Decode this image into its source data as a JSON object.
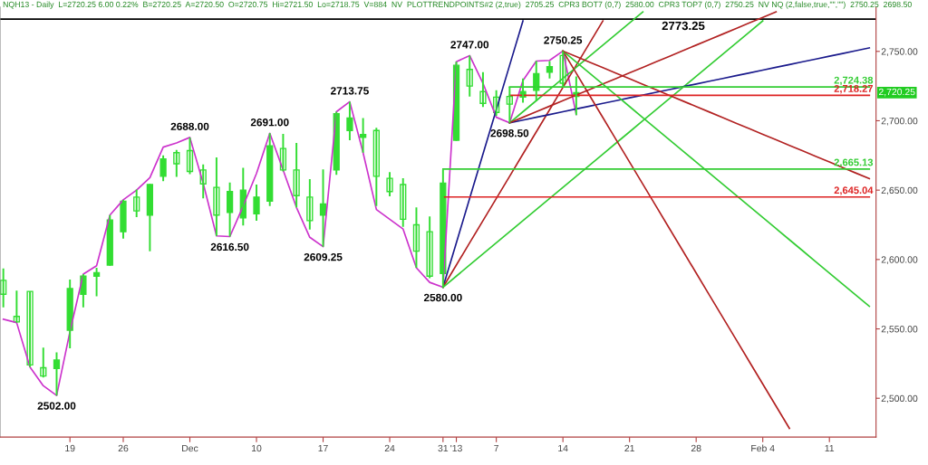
{
  "chart_data": {
    "type": "candlestick",
    "title": "NQH13 - Daily  L=2720.25 6.00 0.22%  B=2720.25  A=2720.50  O=2720.75  Hi=2721.50  Lo=2718.75  V=884  NV  PLOTTRENDPOINTS#2 (2,true)  2705.25  CPR3 BOT7 (0,7)  2580.00  CPR3 TOP7 (0,7)  2750.25  NV NQ (2,false,true,\"\",\"\")  2750.25  2698.50",
    "categories": [
      null,
      null,
      null,
      null,
      null,
      "19",
      null,
      null,
      null,
      "26",
      null,
      null,
      null,
      null,
      "Dec",
      null,
      null,
      null,
      null,
      "10",
      null,
      null,
      null,
      null,
      "17",
      null,
      null,
      null,
      null,
      "24",
      null,
      null,
      null,
      "31",
      "'13",
      null,
      null,
      "7",
      null,
      null,
      null,
      null,
      "14",
      null,
      null,
      null,
      null,
      "21",
      null,
      null,
      null,
      null,
      "28",
      null,
      null,
      null,
      null,
      "Feb 4",
      null,
      null,
      null,
      null,
      "11",
      null,
      null,
      null
    ],
    "color": "#33dd33",
    "ohlc": [
      [
        2585,
        2593.5,
        2565.5,
        2575
      ],
      [
        2559,
        2577.5,
        2554.5,
        2555
      ],
      [
        2577,
        2577,
        2522.5,
        2524
      ],
      [
        2522,
        2536.5,
        2515,
        2516
      ],
      [
        2521.5,
        2533,
        2502,
        2527.5
      ],
      [
        2549,
        2585.5,
        2536,
        2579
      ],
      [
        2575,
        2589.5,
        2565.5,
        2588
      ],
      [
        2588,
        2594,
        2573.5,
        2590.5
      ],
      [
        2596,
        2632,
        2595.5,
        2628.5
      ],
      [
        2620,
        2643,
        2615,
        2642
      ],
      [
        2645,
        2650.5,
        2630.5,
        2635
      ],
      [
        2632,
        2654.5,
        2606,
        2654
      ],
      [
        2660,
        2675,
        2656.5,
        2672.5
      ],
      [
        2677,
        2679,
        2659.5,
        2669
      ],
      [
        2678.5,
        2688,
        2661.5,
        2663.5
      ],
      [
        2664.5,
        2668.5,
        2644,
        2654.5
      ],
      [
        2652,
        2673.5,
        2617,
        2632
      ],
      [
        2634,
        2655.5,
        2616.5,
        2649
      ],
      [
        2630,
        2666,
        2624.5,
        2650
      ],
      [
        2633,
        2654,
        2628,
        2645
      ],
      [
        2642,
        2691,
        2638.5,
        2682
      ],
      [
        2680,
        2690.5,
        2663.5,
        2664.5
      ],
      [
        2664.5,
        2684,
        2637.5,
        2646
      ],
      [
        2645,
        2658,
        2621.5,
        2628
      ],
      [
        2632,
        2665,
        2609.25,
        2640
      ],
      [
        2664.5,
        2706.5,
        2661,
        2705
      ],
      [
        2693,
        2713.75,
        2686,
        2702
      ],
      [
        2688,
        2702,
        2677,
        2690
      ],
      [
        2693,
        2695,
        2638.5,
        2660
      ],
      [
        2658.5,
        2663,
        2645.5,
        2649
      ],
      [
        2654,
        2658.5,
        2623.5,
        2629
      ],
      [
        2625,
        2637.5,
        2594,
        2606
      ],
      [
        2620,
        2631,
        2586.5,
        2588
      ],
      [
        2590,
        2665,
        2580,
        2655
      ],
      [
        2686,
        2742.5,
        2685.5,
        2740
      ],
      [
        2737,
        2747,
        2717.5,
        2725
      ],
      [
        2721,
        2735,
        2710,
        2712.5
      ],
      [
        2717,
        2722,
        2703.5,
        2706
      ],
      [
        2717.5,
        2724.5,
        2698.5,
        2712
      ],
      [
        2717,
        2730.5,
        2713,
        2721
      ],
      [
        2722,
        2743,
        2714,
        2734
      ],
      [
        2735,
        2743,
        2730.5,
        2739
      ],
      [
        2747,
        2750.25,
        2724,
        2727
      ],
      [
        2717.5,
        2732,
        2704,
        2720.25
      ],
      null,
      null,
      null,
      null,
      null,
      null,
      null,
      null,
      null,
      null,
      null,
      null,
      null,
      null,
      null,
      null,
      null,
      null,
      null,
      null,
      null,
      null
    ],
    "series": [
      {
        "type": "line",
        "color": "#cc33cc",
        "values": [
          2557,
          2554.5,
          2522.5,
          2509,
          2502,
          2548,
          2589.5,
          2595.5,
          2632,
          2643,
          2650,
          2659,
          2681,
          2684,
          2688,
          2655,
          2617,
          2616.5,
          2638.5,
          2662,
          2691,
          2664.5,
          2637.5,
          2616,
          2609.25,
          2706.5,
          2713.75,
          2677,
          2636,
          2629,
          2622,
          2594,
          2583.5,
          2580,
          2742.5,
          2747,
          2727,
          2702.5,
          2698.5,
          2729,
          2743,
          2743.5,
          2750.25,
          2704.5,
          null,
          null,
          null,
          null,
          null,
          null,
          null,
          null,
          null,
          null,
          null,
          null,
          null,
          null,
          null,
          null,
          null,
          null,
          null,
          null,
          null,
          null
        ],
        "value_labels": [
          null,
          null,
          null,
          null,
          "2502.00",
          null,
          null,
          null,
          null,
          null,
          null,
          null,
          null,
          null,
          "2688.00",
          null,
          null,
          "2616.50",
          null,
          null,
          "2691.00",
          null,
          null,
          null,
          "2609.25",
          null,
          "2713.75",
          null,
          null,
          null,
          null,
          null,
          null,
          "2580.00",
          null,
          "2747.00",
          null,
          null,
          "2698.50",
          null,
          null,
          null,
          "2750.25",
          null,
          null,
          null,
          null,
          null,
          null,
          null,
          null,
          null,
          null,
          null,
          null,
          null,
          null,
          null,
          null,
          null,
          null,
          null,
          null,
          null,
          null,
          null
        ]
      },
      {
        "type": "line",
        "color": "#1a1a8c",
        "values": [
          null,
          null,
          null,
          null,
          null,
          null,
          null,
          null,
          null,
          null,
          null,
          null,
          null,
          null,
          null,
          null,
          null,
          null,
          null,
          null,
          null,
          null,
          null,
          null,
          null,
          null,
          null,
          null,
          null,
          null,
          null,
          null,
          null,
          2580,
          2612,
          2644,
          2676,
          2708,
          2740,
          2772,
          null,
          null,
          null,
          null,
          null,
          null,
          null,
          null,
          null,
          null,
          null,
          null,
          null,
          null,
          null,
          null,
          null,
          null,
          null,
          null,
          null,
          null,
          null,
          null,
          null,
          null
        ]
      },
      {
        "type": "line",
        "color": "#b22222",
        "values": [
          null,
          null,
          null,
          null,
          null,
          null,
          null,
          null,
          null,
          null,
          null,
          null,
          null,
          null,
          null,
          null,
          null,
          null,
          null,
          null,
          null,
          null,
          null,
          null,
          null,
          null,
          null,
          null,
          null,
          null,
          null,
          null,
          null,
          2580,
          2596,
          2612,
          2628,
          2644,
          2660,
          2676,
          2692,
          2708,
          2724,
          2740,
          2756,
          2772,
          null,
          null,
          null,
          null,
          null,
          null,
          null,
          null,
          null,
          null,
          null,
          null,
          null,
          null,
          null,
          null,
          null,
          null,
          null,
          null
        ]
      },
      {
        "type": "line",
        "color": "#33cc33",
        "values": [
          null,
          null,
          null,
          null,
          null,
          null,
          null,
          null,
          null,
          null,
          null,
          null,
          null,
          null,
          null,
          null,
          null,
          null,
          null,
          null,
          null,
          null,
          null,
          null,
          null,
          null,
          null,
          null,
          null,
          null,
          null,
          null,
          null,
          2580,
          2588,
          2596,
          2604,
          2612,
          2620,
          2628,
          2636,
          2644,
          2652,
          2660,
          2668,
          2676,
          2684,
          2692,
          2700,
          2708,
          2716,
          2724,
          2732,
          2740,
          2748,
          2756,
          2764,
          2772,
          null,
          null,
          null,
          null,
          null,
          null,
          null,
          null
        ]
      },
      {
        "type": "line",
        "color": "#1a1a8c",
        "values": [
          null,
          null,
          null,
          null,
          null,
          null,
          null,
          null,
          null,
          null,
          null,
          null,
          null,
          null,
          null,
          null,
          null,
          null,
          null,
          null,
          null,
          null,
          null,
          null,
          null,
          null,
          null,
          null,
          null,
          null,
          null,
          null,
          null,
          null,
          null,
          null,
          null,
          null,
          2698.5,
          2700.5,
          2702.5,
          2704.5,
          2706.5,
          2708.5,
          2710.5,
          2712.5,
          2714.5,
          2716.5,
          2718.5,
          2720.5,
          2722.5,
          2724.5,
          2726.5,
          2728.5,
          2730.5,
          2732.5,
          2734.5,
          2736.5,
          2738.5,
          2740.5,
          2742.5,
          2744.5,
          2746.5,
          2748.5,
          2750.5,
          2752.5
        ]
      },
      {
        "type": "line",
        "color": "#33cc33",
        "values": [
          null,
          null,
          null,
          null,
          null,
          null,
          null,
          null,
          null,
          null,
          null,
          null,
          null,
          null,
          null,
          null,
          null,
          null,
          null,
          null,
          null,
          null,
          null,
          null,
          null,
          null,
          null,
          null,
          null,
          null,
          null,
          null,
          null,
          null,
          null,
          null,
          null,
          null,
          2698.5,
          2706.5,
          2714.5,
          2722.5,
          2730.5,
          2738.5,
          2746.5,
          2754.5,
          2762.5,
          2770.5,
          2778.5,
          null,
          null,
          null,
          null,
          null,
          null,
          null,
          null,
          null,
          null,
          null,
          null,
          null,
          null,
          null,
          null,
          null
        ]
      },
      {
        "type": "line",
        "color": "#b22222",
        "values": [
          null,
          null,
          null,
          null,
          null,
          null,
          null,
          null,
          null,
          null,
          null,
          null,
          null,
          null,
          null,
          null,
          null,
          null,
          null,
          null,
          null,
          null,
          null,
          null,
          null,
          null,
          null,
          null,
          null,
          null,
          null,
          null,
          null,
          null,
          null,
          null,
          null,
          null,
          2698.5,
          2702.5,
          2706.5,
          2710.5,
          2714.5,
          2718.5,
          2722.5,
          2726.5,
          2730.5,
          2734.5,
          2738.5,
          2742.5,
          2746.5,
          2750.5,
          2754.5,
          2758.5,
          2762.5,
          2766.5,
          2770.5,
          2774.5,
          2778.5,
          null,
          null,
          null,
          null,
          null,
          null,
          null
        ]
      },
      {
        "type": "line",
        "color": "#b22222",
        "values": [
          null,
          null,
          null,
          null,
          null,
          null,
          null,
          null,
          null,
          null,
          null,
          null,
          null,
          null,
          null,
          null,
          null,
          null,
          null,
          null,
          null,
          null,
          null,
          null,
          null,
          null,
          null,
          null,
          null,
          null,
          null,
          null,
          null,
          null,
          null,
          null,
          null,
          null,
          null,
          null,
          null,
          null,
          2750.25,
          2734.25,
          2718.25,
          2702.25,
          2686.25,
          2670.25,
          2654.25,
          2638.25,
          2622.25,
          2606.25,
          2590.25,
          2574.25,
          2558.25,
          2542.25,
          2526.25,
          2510.25,
          2494.25,
          2478.25,
          null,
          null,
          null,
          null,
          null,
          null
        ]
      },
      {
        "type": "line",
        "color": "#33cc33",
        "values": [
          null,
          null,
          null,
          null,
          null,
          null,
          null,
          null,
          null,
          null,
          null,
          null,
          null,
          null,
          null,
          null,
          null,
          null,
          null,
          null,
          null,
          null,
          null,
          null,
          null,
          null,
          null,
          null,
          null,
          null,
          null,
          null,
          null,
          null,
          null,
          null,
          null,
          null,
          null,
          null,
          null,
          null,
          2750.25,
          2742.25,
          2734.25,
          2726.25,
          2718.25,
          2710.25,
          2702.25,
          2694.25,
          2686.25,
          2678.25,
          2670.25,
          2662.25,
          2654.25,
          2646.25,
          2638.25,
          2630.25,
          2622.25,
          2614.25,
          2606.25,
          2598.25,
          2590.25,
          2582.25,
          2574.25,
          2566.25
        ]
      },
      {
        "type": "line",
        "color": "#b22222",
        "values": [
          null,
          null,
          null,
          null,
          null,
          null,
          null,
          null,
          null,
          null,
          null,
          null,
          null,
          null,
          null,
          null,
          null,
          null,
          null,
          null,
          null,
          null,
          null,
          null,
          null,
          null,
          null,
          null,
          null,
          null,
          null,
          null,
          null,
          null,
          null,
          null,
          null,
          null,
          null,
          null,
          null,
          null,
          2750.25,
          2746.25,
          2742.25,
          2738.25,
          2734.25,
          2730.25,
          2726.25,
          2722.25,
          2718.25,
          2714.25,
          2710.25,
          2706.25,
          2702.25,
          2698.25,
          2694.25,
          2690.25,
          2686.25,
          2682.25,
          2678.25,
          2674.25,
          2670.25,
          2666.25,
          2662.25,
          2658.25
        ]
      },
      {
        "type": "line",
        "color": "#33cc33",
        "values": [
          null,
          null,
          null,
          null,
          null,
          null,
          null,
          null,
          null,
          null,
          null,
          null,
          null,
          null,
          null,
          null,
          null,
          null,
          null,
          null,
          null,
          null,
          null,
          null,
          null,
          null,
          null,
          null,
          null,
          null,
          null,
          null,
          null,
          null,
          null,
          null,
          null,
          null,
          2724.38,
          2724.38,
          2724.38,
          2724.38,
          2724.38,
          2724.38,
          2724.38,
          2724.38,
          2724.38,
          2724.38,
          2724.38,
          2724.38,
          2724.38,
          2724.38,
          2724.38,
          2724.38,
          2724.38,
          2724.38,
          2724.38,
          2724.38,
          2724.38,
          2724.38,
          2724.38,
          2724.38,
          2724.38,
          2724.38,
          2724.38,
          2724.38
        ],
        "value_labels": [
          null,
          null,
          null,
          null,
          null,
          null,
          null,
          null,
          null,
          null,
          null,
          null,
          null,
          null,
          null,
          null,
          null,
          null,
          null,
          null,
          null,
          null,
          null,
          null,
          null,
          null,
          null,
          null,
          null,
          null,
          null,
          null,
          null,
          null,
          null,
          null,
          null,
          null,
          null,
          null,
          null,
          null,
          null,
          null,
          null,
          null,
          null,
          null,
          null,
          null,
          null,
          null,
          null,
          null,
          null,
          null,
          null,
          null,
          null,
          null,
          null,
          null,
          null,
          null,
          null,
          "2,724.38"
        ]
      },
      {
        "type": "line",
        "color": "#dd2222",
        "values": [
          null,
          null,
          null,
          null,
          null,
          null,
          null,
          null,
          null,
          null,
          null,
          null,
          null,
          null,
          null,
          null,
          null,
          null,
          null,
          null,
          null,
          null,
          null,
          null,
          null,
          null,
          null,
          null,
          null,
          null,
          null,
          null,
          null,
          null,
          null,
          null,
          null,
          null,
          2718.27,
          2718.27,
          2718.27,
          2718.27,
          2718.27,
          2718.27,
          2718.27,
          2718.27,
          2718.27,
          2718.27,
          2718.27,
          2718.27,
          2718.27,
          2718.27,
          2718.27,
          2718.27,
          2718.27,
          2718.27,
          2718.27,
          2718.27,
          2718.27,
          2718.27,
          2718.27,
          2718.27,
          2718.27,
          2718.27,
          2718.27,
          2718.27
        ],
        "value_labels": [
          null,
          null,
          null,
          null,
          null,
          null,
          null,
          null,
          null,
          null,
          null,
          null,
          null,
          null,
          null,
          null,
          null,
          null,
          null,
          null,
          null,
          null,
          null,
          null,
          null,
          null,
          null,
          null,
          null,
          null,
          null,
          null,
          null,
          null,
          null,
          null,
          null,
          null,
          null,
          null,
          null,
          null,
          null,
          null,
          null,
          null,
          null,
          null,
          null,
          null,
          null,
          null,
          null,
          null,
          null,
          null,
          null,
          null,
          null,
          null,
          null,
          null,
          null,
          null,
          null,
          "2,718.27"
        ]
      },
      {
        "type": "line",
        "color": "#33cc33",
        "values": [
          null,
          null,
          null,
          null,
          null,
          null,
          null,
          null,
          null,
          null,
          null,
          null,
          null,
          null,
          null,
          null,
          null,
          null,
          null,
          null,
          null,
          null,
          null,
          null,
          null,
          null,
          null,
          null,
          null,
          null,
          null,
          null,
          null,
          2665.13,
          2665.13,
          2665.13,
          2665.13,
          2665.13,
          2665.13,
          2665.13,
          2665.13,
          2665.13,
          2665.13,
          2665.13,
          2665.13,
          2665.13,
          2665.13,
          2665.13,
          2665.13,
          2665.13,
          2665.13,
          2665.13,
          2665.13,
          2665.13,
          2665.13,
          2665.13,
          2665.13,
          2665.13,
          2665.13,
          2665.13,
          2665.13,
          2665.13,
          2665.13,
          2665.13,
          2665.13,
          2665.13
        ],
        "value_labels": [
          null,
          null,
          null,
          null,
          null,
          null,
          null,
          null,
          null,
          null,
          null,
          null,
          null,
          null,
          null,
          null,
          null,
          null,
          null,
          null,
          null,
          null,
          null,
          null,
          null,
          null,
          null,
          null,
          null,
          null,
          null,
          null,
          null,
          null,
          null,
          null,
          null,
          null,
          null,
          null,
          null,
          null,
          null,
          null,
          null,
          null,
          null,
          null,
          null,
          null,
          null,
          null,
          null,
          null,
          null,
          null,
          null,
          null,
          null,
          null,
          null,
          null,
          null,
          null,
          null,
          "2,665.13"
        ]
      },
      {
        "type": "line",
        "color": "#dd2222",
        "values": [
          null,
          null,
          null,
          null,
          null,
          null,
          null,
          null,
          null,
          null,
          null,
          null,
          null,
          null,
          null,
          null,
          null,
          null,
          null,
          null,
          null,
          null,
          null,
          null,
          null,
          null,
          null,
          null,
          null,
          null,
          null,
          null,
          null,
          2645.04,
          2645.04,
          2645.04,
          2645.04,
          2645.04,
          2645.04,
          2645.04,
          2645.04,
          2645.04,
          2645.04,
          2645.04,
          2645.04,
          2645.04,
          2645.04,
          2645.04,
          2645.04,
          2645.04,
          2645.04,
          2645.04,
          2645.04,
          2645.04,
          2645.04,
          2645.04,
          2645.04,
          2645.04,
          2645.04,
          2645.04,
          2645.04,
          2645.04,
          2645.04,
          2645.04,
          2645.04,
          2645.04
        ],
        "value_labels": [
          null,
          null,
          null,
          null,
          null,
          null,
          null,
          null,
          null,
          null,
          null,
          null,
          null,
          null,
          null,
          null,
          null,
          null,
          null,
          null,
          null,
          null,
          null,
          null,
          null,
          null,
          null,
          null,
          null,
          null,
          null,
          null,
          null,
          null,
          null,
          null,
          null,
          null,
          null,
          null,
          null,
          null,
          null,
          null,
          null,
          null,
          null,
          null,
          null,
          null,
          null,
          null,
          null,
          null,
          null,
          null,
          null,
          null,
          null,
          null,
          null,
          null,
          null,
          null,
          null,
          "2,645.04"
        ]
      }
    ],
    "ref_lines": [
      {
        "axis": "y",
        "value": 2773.25,
        "label": "2773.25",
        "color": "#000000"
      }
    ],
    "annotations": [
      "2,720.25"
    ],
    "ylim": [
      2472,
      2782
    ],
    "yticks": [
      {
        "value": 2500,
        "label": "2,500.00"
      },
      {
        "value": 2550,
        "label": "2,550.00"
      },
      {
        "value": 2600,
        "label": "2,600.00"
      },
      {
        "value": 2650,
        "label": "2,650.00"
      },
      {
        "value": 2700,
        "label": "2,700.00"
      },
      {
        "value": 2750,
        "label": "2,750.00"
      }
    ],
    "grid": false,
    "legend": false
  }
}
